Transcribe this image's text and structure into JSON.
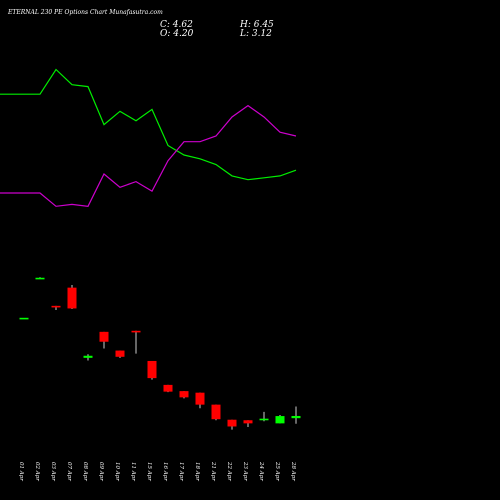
{
  "colors": {
    "background": "#000000",
    "text": "#ffffff",
    "up": "#00ff00",
    "down": "#ff0000",
    "line_green": "#00ee00",
    "line_magenta": "#cc00cc",
    "wick": "#ffffff"
  },
  "chart_data": {
    "type": "candlestick",
    "title": "ETERNAL 230 PE Options Chart Munafasutra.com",
    "ohlc": {
      "close": "C: 4.62",
      "high": "H: 6.45",
      "open": "O: 4.20",
      "low": "L: 3.12"
    },
    "categories": [
      "01 Apr",
      "02 Apr",
      "03 Apr",
      "07 Apr",
      "08 Apr",
      "09 Apr",
      "10 Apr",
      "11 Apr",
      "15 Apr",
      "16 Apr",
      "17 Apr",
      "18 Apr",
      "21 Apr",
      "22 Apr",
      "23 Apr",
      "24 Apr",
      "25 Apr",
      "28 Apr"
    ],
    "candles": [
      {
        "date": "01 Apr",
        "open": 23.5,
        "high": 23.5,
        "low": 23.5,
        "close": 23.5
      },
      {
        "date": "02 Apr",
        "open": 31.0,
        "high": 31.3,
        "low": 31.0,
        "close": 31.2
      },
      {
        "date": "03 Apr",
        "open": 25.8,
        "high": 25.8,
        "low": 25.0,
        "close": 25.5
      },
      {
        "date": "07 Apr",
        "open": 29.3,
        "high": 29.8,
        "low": 25.2,
        "close": 25.3
      },
      {
        "date": "08 Apr",
        "open": 15.8,
        "high": 16.5,
        "low": 15.3,
        "close": 16.2
      },
      {
        "date": "09 Apr",
        "open": 20.8,
        "high": 20.8,
        "low": 17.6,
        "close": 18.9
      },
      {
        "date": "10 Apr",
        "open": 17.2,
        "high": 17.2,
        "low": 15.8,
        "close": 16.0
      },
      {
        "date": "11 Apr",
        "open": 21.0,
        "high": 21.0,
        "low": 16.6,
        "close": 20.7
      },
      {
        "date": "15 Apr",
        "open": 15.2,
        "high": 15.2,
        "low": 11.6,
        "close": 11.9
      },
      {
        "date": "16 Apr",
        "open": 10.6,
        "high": 10.6,
        "low": 9.2,
        "close": 9.3
      },
      {
        "date": "17 Apr",
        "open": 9.4,
        "high": 9.4,
        "low": 8.0,
        "close": 8.2
      },
      {
        "date": "18 Apr",
        "open": 9.1,
        "high": 9.1,
        "low": 6.1,
        "close": 6.8
      },
      {
        "date": "21 Apr",
        "open": 6.8,
        "high": 6.8,
        "low": 3.8,
        "close": 4.0
      },
      {
        "date": "22 Apr",
        "open": 3.9,
        "high": 3.9,
        "low": 2.0,
        "close": 2.6
      },
      {
        "date": "23 Apr",
        "open": 3.8,
        "high": 3.8,
        "low": 2.5,
        "close": 3.2
      },
      {
        "date": "24 Apr",
        "open": 3.9,
        "high": 5.4,
        "low": 3.6,
        "close": 4.1
      },
      {
        "date": "25 Apr",
        "open": 3.2,
        "high": 4.8,
        "low": 3.2,
        "close": 4.6
      },
      {
        "date": "28 Apr",
        "open": 4.2,
        "high": 6.45,
        "low": 3.12,
        "close": 4.62
      }
    ],
    "price_axis": [
      0,
      35
    ],
    "line_axis": [
      0,
      100
    ],
    "series": [
      {
        "values": [
          82,
          82,
          95,
          87,
          86,
          66,
          73,
          68,
          74,
          55,
          50,
          48,
          45,
          39,
          37,
          38,
          39,
          42
        ]
      },
      {
        "values": [
          30,
          30,
          23,
          24,
          23,
          40,
          33,
          36,
          31,
          47,
          57,
          57,
          60,
          70,
          76,
          70,
          62,
          60
        ]
      }
    ]
  }
}
